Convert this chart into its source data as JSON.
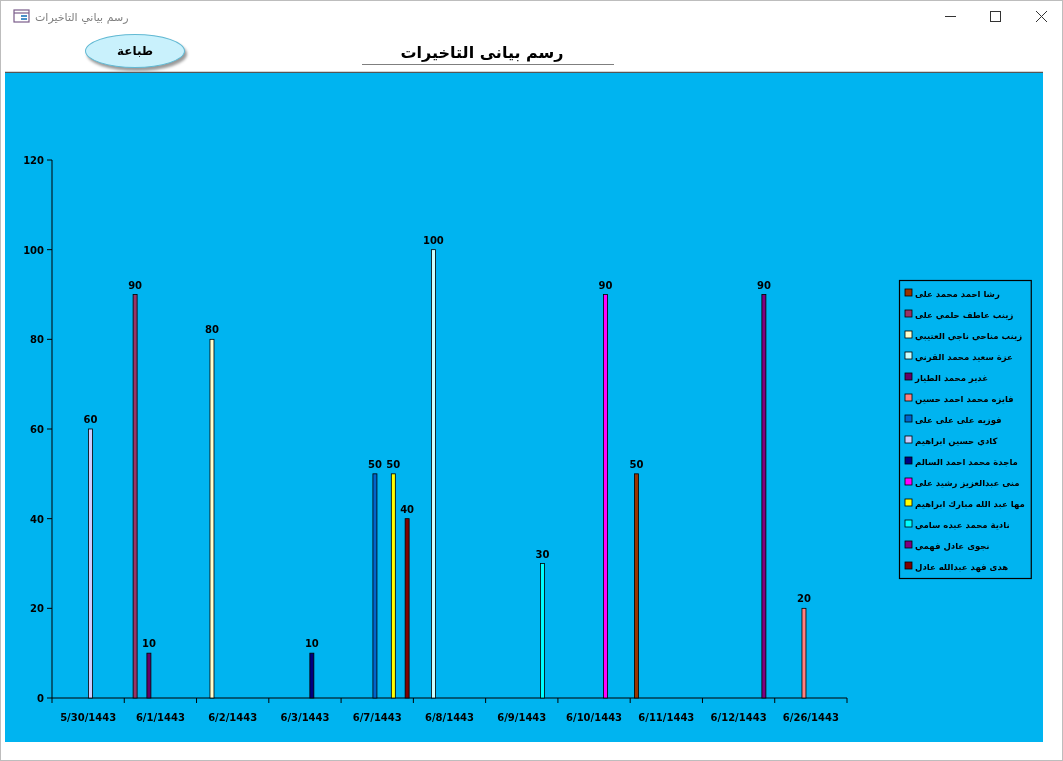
{
  "chart_data": {
    "type": "bar",
    "title": "رسم بيانى التاخيرات",
    "annotations": [
      "رسم بياني التاخيرات",
      "طباعة"
    ],
    "categories": [
      "5/30/1443",
      "6/1/1443",
      "6/2/1443",
      "6/3/1443",
      "6/7/1443",
      "6/8/1443",
      "6/9/1443",
      "6/10/1443",
      "6/11/1443",
      "6/12/1443",
      "6/26/1443"
    ],
    "series": [
      {
        "name": "رشا احمد محمد على",
        "color": "#993300",
        "values": [
          null,
          null,
          null,
          null,
          null,
          null,
          null,
          null,
          50,
          null,
          null
        ]
      },
      {
        "name": "زينب عاطف حلمي على",
        "color": "#993366",
        "values": [
          null,
          90,
          null,
          null,
          null,
          null,
          null,
          null,
          null,
          null,
          null
        ]
      },
      {
        "name": "زينب مناحي ناجي العتيبي",
        "color": "#FFFFCC",
        "values": [
          null,
          null,
          80,
          null,
          null,
          null,
          null,
          null,
          null,
          null,
          null
        ]
      },
      {
        "name": "عزة سعيد محمد القرني",
        "color": "#CCFFFF",
        "values": [
          null,
          null,
          null,
          null,
          null,
          100,
          null,
          null,
          null,
          null,
          null
        ]
      },
      {
        "name": "غدير محمد الطيار",
        "color": "#660066",
        "values": [
          null,
          10,
          null,
          null,
          null,
          null,
          null,
          null,
          null,
          null,
          null
        ]
      },
      {
        "name": "فايزه محمد احمد حسين",
        "color": "#FF8080",
        "values": [
          null,
          null,
          null,
          null,
          null,
          null,
          null,
          null,
          null,
          null,
          20
        ]
      },
      {
        "name": "فوزيه على على على",
        "color": "#0066CC",
        "values": [
          null,
          null,
          null,
          null,
          50,
          null,
          null,
          null,
          null,
          null,
          null
        ]
      },
      {
        "name": "كادي حسين ابراهيم",
        "color": "#CCCCFF",
        "values": [
          60,
          null,
          null,
          null,
          null,
          null,
          null,
          null,
          null,
          null,
          null
        ]
      },
      {
        "name": "ماجدة محمد احمد السالم",
        "color": "#000080",
        "values": [
          null,
          null,
          null,
          10,
          null,
          null,
          null,
          null,
          null,
          null,
          null
        ]
      },
      {
        "name": "منى عبدالعزيز رشيد على",
        "color": "#FF00FF",
        "values": [
          null,
          null,
          null,
          null,
          null,
          null,
          null,
          90,
          null,
          null,
          null
        ]
      },
      {
        "name": "مها عبد الله مبارك ابراهيم",
        "color": "#FFFF00",
        "values": [
          null,
          null,
          null,
          null,
          50,
          null,
          null,
          null,
          null,
          null,
          null
        ]
      },
      {
        "name": "نادية محمد عبده سامي",
        "color": "#00FFFF",
        "values": [
          null,
          null,
          null,
          null,
          null,
          null,
          30,
          null,
          null,
          null,
          null
        ]
      },
      {
        "name": "نجوى عادل فهمي",
        "color": "#800080",
        "values": [
          null,
          null,
          null,
          null,
          null,
          null,
          null,
          null,
          null,
          90,
          null
        ]
      },
      {
        "name": "هدى فهد عبدالله عادل",
        "color": "#800000",
        "values": [
          null,
          null,
          null,
          null,
          40,
          null,
          null,
          null,
          null,
          null,
          null
        ]
      }
    ],
    "ylim": [
      0,
      120
    ],
    "yticks": [
      0,
      20,
      40,
      60,
      80,
      100,
      120
    ],
    "data_labels": true,
    "legend": "right"
  }
}
